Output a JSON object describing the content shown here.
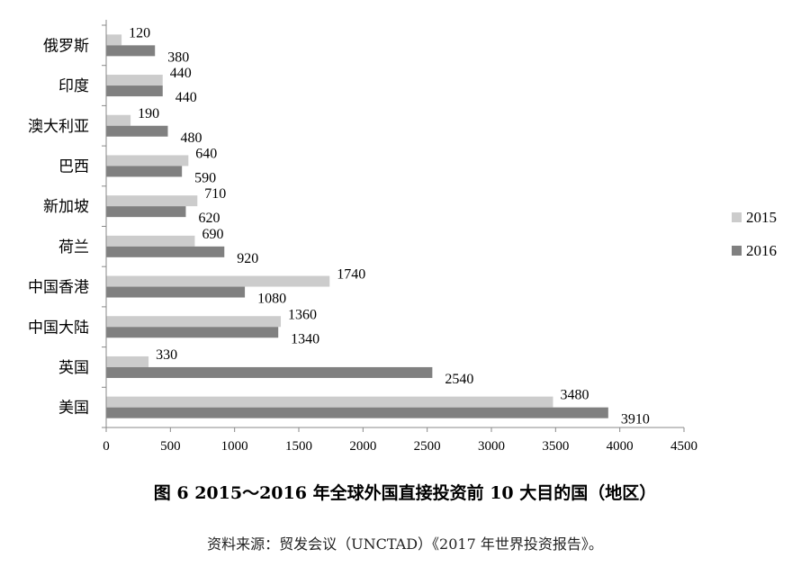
{
  "chart_data": {
    "type": "bar",
    "orientation": "horizontal",
    "categories": [
      "俄罗斯",
      "印度",
      "澳大利亚",
      "巴西",
      "新加坡",
      "荷兰",
      "中国香港",
      "中国大陆",
      "英国",
      "美国"
    ],
    "series": [
      {
        "name": "2015",
        "color": "#cccccc",
        "values": [
          120,
          440,
          190,
          640,
          710,
          690,
          1740,
          1360,
          330,
          3480
        ]
      },
      {
        "name": "2016",
        "color": "#808080",
        "values": [
          380,
          440,
          480,
          590,
          620,
          920,
          1080,
          1340,
          2540,
          3910
        ]
      }
    ],
    "xlim": [
      0,
      4500
    ],
    "xticks": [
      0,
      500,
      1000,
      1500,
      2000,
      2500,
      3000,
      3500,
      4000,
      4500
    ],
    "legend_position": "right",
    "grid": false,
    "title": "图 6 2015～2016 年全球外国直接投资前 10 大目的国（地区）",
    "source": "资料来源：贸发会议（UNCTAD）《2017 年世界投资报告》。"
  }
}
